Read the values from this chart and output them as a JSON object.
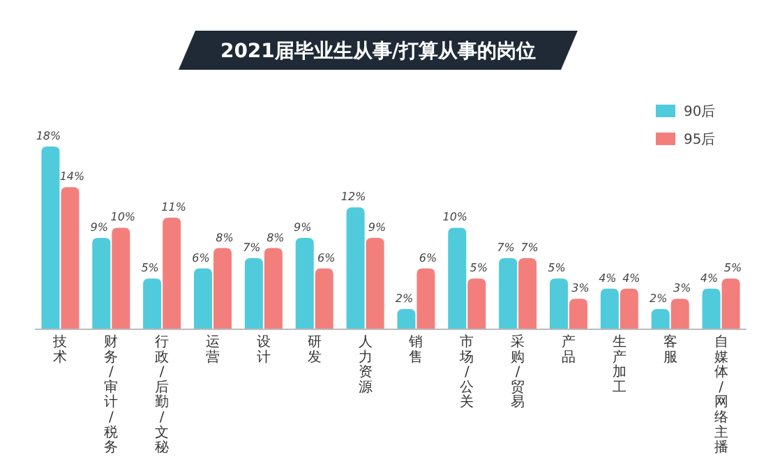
{
  "chart_data": {
    "type": "bar",
    "title": "2021届毕业生从事/打算从事的岗位",
    "categories": [
      "技术",
      "财务/审计/税务",
      "行政/后勤/文秘",
      "运营",
      "设计",
      "研发",
      "人力资源",
      "销售",
      "市场/公关",
      "采购/贸易",
      "产品",
      "生产加工",
      "客服",
      "自媒体/网络主播"
    ],
    "series": [
      {
        "name": "90后",
        "color": "#4fcbdc",
        "values": [
          18,
          9,
          5,
          6,
          7,
          9,
          12,
          2,
          10,
          7,
          5,
          4,
          2,
          4
        ],
        "value_labels": [
          "18%",
          "9%",
          "5%",
          "6%",
          "7%",
          "9%",
          "12%",
          "2%",
          "10%",
          "7%",
          "5%",
          "4%",
          "2%",
          "4%"
        ]
      },
      {
        "name": "95后",
        "color": "#f37f7d",
        "values": [
          14,
          10,
          11,
          8,
          8,
          6,
          9,
          6,
          5,
          7,
          3,
          4,
          3,
          5
        ],
        "value_labels": [
          "14%",
          "10%",
          "11%",
          "8%",
          "8%",
          "6%",
          "9%",
          "6%",
          "5%",
          "7%",
          "3%",
          "4%",
          "3%",
          "5%"
        ]
      }
    ],
    "legend": "top right"
  }
}
